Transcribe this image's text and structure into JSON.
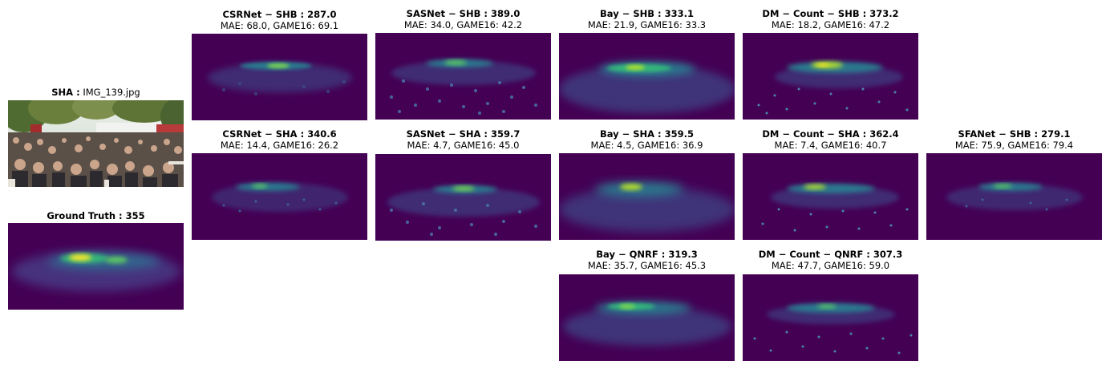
{
  "source": {
    "dataset_label": "SHA :",
    "filename": "IMG_139.jpg"
  },
  "ground_truth": {
    "title": "Ground Truth : 355"
  },
  "panels": {
    "csrnet_shb": {
      "title": "CSRNet − SHB : 287.0",
      "metrics": "MAE: 68.0, GAME16: 69.1"
    },
    "sasnet_shb": {
      "title": "SASNet − SHB : 389.0",
      "metrics": "MAE: 34.0, GAME16: 42.2"
    },
    "bay_shb": {
      "title": "Bay − SHB : 333.1",
      "metrics": "MAE: 21.9, GAME16: 33.3"
    },
    "dmcount_shb": {
      "title": "DM − Count − SHB : 373.2",
      "metrics": "MAE: 18.2, GAME16: 47.2"
    },
    "csrnet_sha": {
      "title": "CSRNet − SHA : 340.6",
      "metrics": "MAE: 14.4, GAME16: 26.2"
    },
    "sasnet_sha": {
      "title": "SASNet − SHA : 359.7",
      "metrics": "MAE: 4.7, GAME16: 45.0"
    },
    "bay_sha": {
      "title": "Bay − SHA : 359.5",
      "metrics": "MAE: 4.5, GAME16: 36.9"
    },
    "dmcount_sha": {
      "title": "DM − Count − SHA : 362.4",
      "metrics": "MAE: 7.4, GAME16: 40.7"
    },
    "sfanet_shb": {
      "title": "SFANet − SHB : 279.1",
      "metrics": "MAE: 75.9, GAME16: 79.4"
    },
    "bay_qnrf": {
      "title": "Bay − QNRF : 319.3",
      "metrics": "MAE: 35.7, GAME16: 45.3"
    },
    "dmcount_qnrf": {
      "title": "DM − Count − QNRF : 307.3",
      "metrics": "MAE: 47.7, GAME16: 59.0"
    }
  },
  "colors": {
    "map_background": "#440154",
    "low": "#3b528b",
    "mid": "#21918c",
    "high": "#5ec962",
    "peak": "#fde725"
  }
}
